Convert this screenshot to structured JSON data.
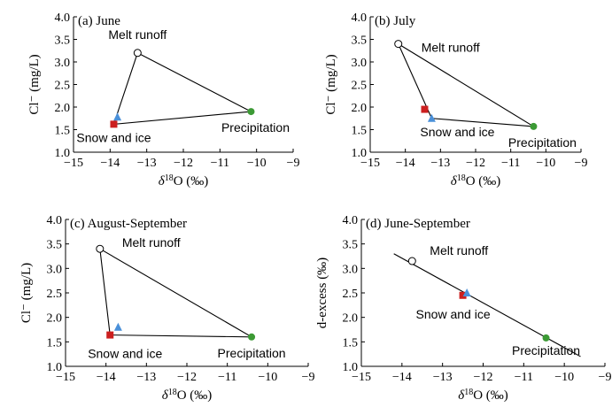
{
  "colors": {
    "melt": "#ffffff",
    "snow": "#cc1f1f",
    "ice": "#4a90d9",
    "precip": "#3c9a35",
    "line": "#000000"
  },
  "chart_data": [
    {
      "type": "scatter",
      "title": "(a) June",
      "xlabel": "δ18O (‰)",
      "ylabel": "Cl⁻ (mg/L)",
      "xlim": [
        -15,
        -9
      ],
      "ylim": [
        1.0,
        4.0
      ],
      "xticks": [
        "−15",
        "−14",
        "−13",
        "−12",
        "−11",
        "−10",
        "−9"
      ],
      "yticks": [
        "1.0",
        "1.5",
        "2.0",
        "2.5",
        "3.0",
        "3.5",
        "4.0"
      ],
      "points": [
        {
          "name": "Melt runoff",
          "x": -13.25,
          "y": 3.2,
          "marker": "circle-open"
        },
        {
          "name": "",
          "x": -13.8,
          "y": 1.78,
          "marker": "triangle"
        },
        {
          "name": "Snow and ice",
          "x": -13.9,
          "y": 1.62,
          "marker": "square"
        },
        {
          "name": "Precipitation",
          "x": -10.15,
          "y": 1.9,
          "marker": "circle-filled"
        }
      ],
      "polygon": [
        [
          -13.25,
          3.2
        ],
        [
          -10.15,
          1.9
        ],
        [
          -13.9,
          1.62
        ]
      ]
    },
    {
      "type": "scatter",
      "title": "(b) July",
      "xlabel": "δ18O (‰)",
      "ylabel": "Cl⁻ (mg/L)",
      "xlim": [
        -15,
        -9
      ],
      "ylim": [
        1.0,
        4.0
      ],
      "xticks": [
        "−15",
        "−14",
        "−13",
        "−12",
        "−11",
        "−10",
        "−9"
      ],
      "yticks": [
        "1.0",
        "1.5",
        "2.0",
        "2.5",
        "3.0",
        "3.5",
        "4.0"
      ],
      "points": [
        {
          "name": "Melt runoff",
          "x": -14.2,
          "y": 3.4,
          "marker": "circle-open"
        },
        {
          "name": "",
          "x": -13.45,
          "y": 1.95,
          "marker": "square"
        },
        {
          "name": "Snow and ice",
          "x": -13.25,
          "y": 1.75,
          "marker": "triangle"
        },
        {
          "name": "Precipitation",
          "x": -10.35,
          "y": 1.57,
          "marker": "circle-filled"
        }
      ],
      "polygon": [
        [
          -14.2,
          3.4
        ],
        [
          -10.35,
          1.57
        ],
        [
          -13.25,
          1.75
        ]
      ]
    },
    {
      "type": "scatter",
      "title": "(c) August-September",
      "xlabel": "δ18O (‰)",
      "ylabel": "Cl⁻ (mg/L)",
      "xlim": [
        -15,
        -9
      ],
      "ylim": [
        1.0,
        4.0
      ],
      "xticks": [
        "−15",
        "−14",
        "−13",
        "−12",
        "−11",
        "−10",
        "−9"
      ],
      "yticks": [
        "1.0",
        "1.5",
        "2.0",
        "2.5",
        "3.0",
        "3.5",
        "4.0"
      ],
      "points": [
        {
          "name": "Melt runoff",
          "x": -14.15,
          "y": 3.4,
          "marker": "circle-open"
        },
        {
          "name": "",
          "x": -13.7,
          "y": 1.8,
          "marker": "triangle"
        },
        {
          "name": "Snow and ice",
          "x": -13.9,
          "y": 1.64,
          "marker": "square"
        },
        {
          "name": "Precipitation",
          "x": -10.4,
          "y": 1.6,
          "marker": "circle-filled"
        }
      ],
      "polygon": [
        [
          -14.15,
          3.4
        ],
        [
          -10.4,
          1.6
        ],
        [
          -13.9,
          1.64
        ]
      ]
    },
    {
      "type": "scatter",
      "title": "(d) June-September",
      "xlabel": "δ18O (‰)",
      "ylabel": "d-excess (‰)",
      "xlim": [
        -15,
        -9
      ],
      "ylim": [
        1.0,
        4.0
      ],
      "xticks": [
        "−15",
        "−14",
        "−13",
        "−12",
        "−11",
        "−10",
        "−9"
      ],
      "yticks": [
        "1.0",
        "1.5",
        "2.0",
        "2.5",
        "3.0",
        "3.5",
        "4.0"
      ],
      "points": [
        {
          "name": "Melt runoff",
          "x": -13.75,
          "y": 3.15,
          "marker": "circle-open"
        },
        {
          "name": "Snow and ice",
          "x": -12.5,
          "y": 2.45,
          "marker": "square"
        },
        {
          "name": "",
          "x": -12.4,
          "y": 2.5,
          "marker": "triangle"
        },
        {
          "name": "Precipitation",
          "x": -10.45,
          "y": 1.58,
          "marker": "circle-filled"
        }
      ],
      "line": [
        [
          -14.2,
          3.3
        ],
        [
          -9.6,
          1.2
        ]
      ]
    }
  ]
}
